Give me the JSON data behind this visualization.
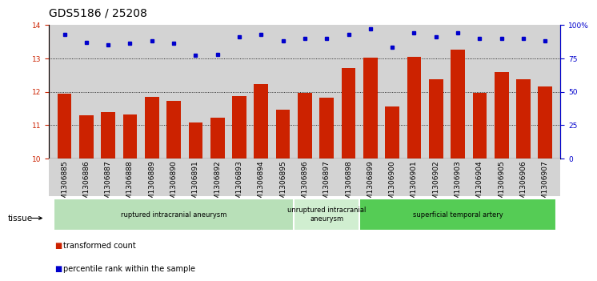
{
  "title": "GDS5186 / 25208",
  "samples": [
    "GSM1306885",
    "GSM1306886",
    "GSM1306887",
    "GSM1306888",
    "GSM1306889",
    "GSM1306890",
    "GSM1306891",
    "GSM1306892",
    "GSM1306893",
    "GSM1306894",
    "GSM1306895",
    "GSM1306896",
    "GSM1306897",
    "GSM1306898",
    "GSM1306899",
    "GSM1306900",
    "GSM1306901",
    "GSM1306902",
    "GSM1306903",
    "GSM1306904",
    "GSM1306905",
    "GSM1306906",
    "GSM1306907"
  ],
  "bar_values": [
    11.93,
    11.3,
    11.38,
    11.32,
    11.85,
    11.72,
    11.07,
    11.22,
    11.88,
    12.22,
    11.47,
    11.97,
    11.83,
    12.72,
    13.02,
    11.55,
    13.05,
    12.37,
    13.27,
    11.97,
    12.6,
    12.37,
    12.15
  ],
  "dot_values": [
    93,
    87,
    85,
    86,
    88,
    86,
    77,
    78,
    91,
    93,
    88,
    90,
    90,
    93,
    97,
    83,
    94,
    91,
    94,
    90,
    90,
    90,
    88
  ],
  "ylim_left": [
    10,
    14
  ],
  "ylim_right": [
    0,
    100
  ],
  "yticks_left": [
    10,
    11,
    12,
    13,
    14
  ],
  "yticks_right": [
    0,
    25,
    50,
    75,
    100
  ],
  "ytick_labels_right": [
    "0",
    "25",
    "50",
    "75",
    "100%"
  ],
  "bar_color": "#cc2200",
  "dot_color": "#0000cc",
  "background_color": "#d3d3d3",
  "tissue_groups": [
    {
      "label": "ruptured intracranial aneurysm",
      "start": 0,
      "end": 11,
      "color": "#b8e0b8"
    },
    {
      "label": "unruptured intracranial\naneurysm",
      "start": 11,
      "end": 14,
      "color": "#d0eed0"
    },
    {
      "label": "superficial temporal artery",
      "start": 14,
      "end": 23,
      "color": "#55cc55"
    }
  ],
  "legend_items": [
    {
      "color": "#cc2200",
      "label": "transformed count"
    },
    {
      "color": "#0000cc",
      "label": "percentile rank within the sample"
    }
  ],
  "tissue_label": "tissue",
  "dotted_gridlines": [
    11,
    12,
    13
  ],
  "title_fontsize": 10,
  "tick_fontsize": 6.5
}
